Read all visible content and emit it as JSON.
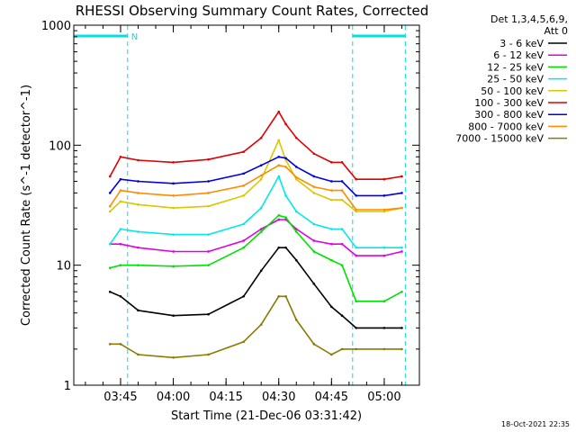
{
  "title": "RHESSI Observing Summary Count Rates, Corrected",
  "footer_timestamp": "18-Oct-2021 22:35",
  "flag_label": "N",
  "colors": {
    "3-6": "#000000",
    "6-12": "#e000e0",
    "12-25": "#00e000",
    "25-50": "#00e8e8",
    "50-100": "#d8c800",
    "100-300": "#e00000",
    "300-800": "#0000e0",
    "800-7000": "#ff8c00",
    "7000-15000": "#8a7a00",
    "flag": "#00e0e0"
  },
  "legend": {
    "header1": "Det 1,3,4,5,6,9,",
    "header2": "Att 0",
    "items": [
      {
        "label": "3 - 6 keV",
        "color": "#000000"
      },
      {
        "label": "6 - 12 keV",
        "color": "#e000e0"
      },
      {
        "label": "12 - 25 keV",
        "color": "#00e000"
      },
      {
        "label": "25 - 50 keV",
        "color": "#00e8e8"
      },
      {
        "label": "50 - 100 keV",
        "color": "#d8c800"
      },
      {
        "label": "100 - 300 keV",
        "color": "#e00000"
      },
      {
        "label": "300 - 800 keV",
        "color": "#0000e0"
      },
      {
        "label": "800 - 7000 keV",
        "color": "#ff8c00"
      },
      {
        "label": "7000 - 15000 keV",
        "color": "#8a7a00"
      }
    ]
  },
  "chart_data": {
    "type": "line",
    "title": "RHESSI Observing Summary Count Rates, Corrected",
    "xlabel": "Start Time (21-Dec-06 03:31:42)",
    "ylabel": "Corrected Count Rate (s^-1 detector^-1)",
    "yscale": "log",
    "ylim": [
      1,
      1000
    ],
    "xlim": [
      "03:31:42",
      "05:10:00"
    ],
    "x_ticks": [
      "03:45",
      "04:00",
      "04:15",
      "04:30",
      "04:45",
      "05:00"
    ],
    "y_ticks": [
      "1",
      "10",
      "100",
      "1000"
    ],
    "x": [
      "03:42",
      "03:45",
      "03:50",
      "04:00",
      "04:10",
      "04:20",
      "04:25",
      "04:30",
      "04:32",
      "04:35",
      "04:40",
      "04:45",
      "04:48",
      "04:52",
      "05:00",
      "05:05"
    ],
    "series": [
      {
        "name": "3 - 6 keV",
        "color": "#000000",
        "values": [
          6,
          5.5,
          4.2,
          3.8,
          3.9,
          5.5,
          9,
          14,
          14,
          11,
          7,
          4.5,
          3.8,
          3,
          3,
          3
        ]
      },
      {
        "name": "6 - 12 keV",
        "color": "#e000e0",
        "values": [
          15,
          15,
          14,
          13,
          13,
          16,
          20,
          24,
          24,
          20,
          16,
          15,
          15,
          12,
          12,
          13
        ]
      },
      {
        "name": "12 - 25 keV",
        "color": "#00e000",
        "values": [
          9.5,
          10,
          10,
          9.8,
          10,
          14,
          19,
          26,
          25,
          19,
          13,
          11,
          10,
          5,
          5,
          6
        ]
      },
      {
        "name": "25 - 50 keV",
        "color": "#00e8e8",
        "values": [
          15,
          20,
          19,
          18,
          18,
          22,
          30,
          55,
          38,
          28,
          22,
          20,
          20,
          14,
          14,
          14
        ]
      },
      {
        "name": "50 - 100 keV",
        "color": "#d8c800",
        "values": [
          28,
          34,
          32,
          30,
          31,
          38,
          52,
          110,
          75,
          52,
          40,
          35,
          35,
          28,
          28,
          30
        ]
      },
      {
        "name": "100 - 300 keV",
        "color": "#e00000",
        "values": [
          55,
          80,
          75,
          72,
          76,
          88,
          115,
          190,
          150,
          115,
          85,
          72,
          72,
          52,
          52,
          55
        ]
      },
      {
        "name": "300 - 800 keV",
        "color": "#0000e0",
        "values": [
          40,
          52,
          50,
          48,
          50,
          58,
          68,
          80,
          78,
          66,
          55,
          50,
          50,
          38,
          38,
          40
        ]
      },
      {
        "name": "800 - 7000 keV",
        "color": "#ff8c00",
        "values": [
          31,
          42,
          40,
          38,
          40,
          46,
          56,
          68,
          66,
          54,
          45,
          42,
          42,
          29,
          29,
          30
        ]
      },
      {
        "name": "7000 - 15000 keV",
        "color": "#8a7a00",
        "values": [
          2.2,
          2.2,
          1.8,
          1.7,
          1.8,
          2.3,
          3.2,
          5.5,
          5.5,
          3.5,
          2.2,
          1.8,
          2,
          2,
          2,
          2
        ]
      }
    ],
    "flag_intervals": [
      [
        "03:31:42",
        "03:47:00"
      ],
      [
        "04:51:00",
        "05:06:00"
      ]
    ],
    "grid": false,
    "legend_position": "right"
  }
}
